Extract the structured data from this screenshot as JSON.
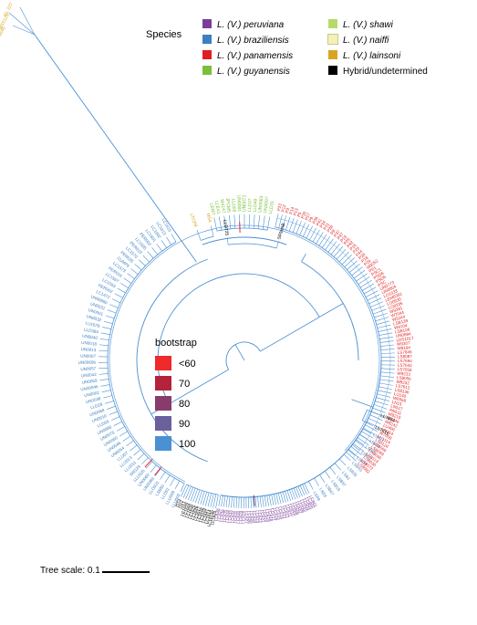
{
  "legend": {
    "title": "Species",
    "items": [
      {
        "genus": "L. (V.) ",
        "species": "peruviana",
        "color": "#7a3f98"
      },
      {
        "genus": "L. (V.) ",
        "species": "braziliensis",
        "color": "#3d7fc1"
      },
      {
        "genus": "L. (V.) ",
        "species": "panamensis",
        "color": "#e02020"
      },
      {
        "genus": "L. (V.) ",
        "species": "guyanensis",
        "color": "#7cbf3a"
      },
      {
        "genus": "L. (V.) ",
        "species": "shawi",
        "color": "#b5d96a"
      },
      {
        "genus": "L. (V.) ",
        "species": "naiffi",
        "color": "#f2f2b6"
      },
      {
        "genus": "L. (V.) ",
        "species": "lainsoni",
        "color": "#d9a520"
      },
      {
        "genus": "",
        "species": "Hybrid/undetermined",
        "color": "#000000",
        "plain": true
      }
    ]
  },
  "bootstrap": {
    "title": "bootstrap",
    "items": [
      {
        "label": "<60",
        "color": "#ee2a2a"
      },
      {
        "label": "70",
        "color": "#b5223c"
      },
      {
        "label": "80",
        "color": "#873c6b"
      },
      {
        "label": "90",
        "color": "#6b5f9c"
      },
      {
        "label": "100",
        "color": "#4a90d2"
      }
    ]
  },
  "scale": {
    "label": "Tree scale: 0.1"
  },
  "colors": {
    "branch": "#4a90d2",
    "peruviana": "#7a3f98",
    "braziliensis": "#3d7fc1",
    "panamensis": "#e02020",
    "guyanensis": "#7cbf3a",
    "lainsoni": "#d9a520",
    "hybrid": "#000000"
  },
  "tips": {
    "lainsoni": [
      "CL 227",
      "MSS123",
      "M9545"
    ],
    "naiffi": [
      "LTCP8",
      "MS4"
    ],
    "guyanensis": [
      "LEM7",
      "LLE41",
      "M4147",
      "JPCM5",
      "LLD09",
      "UN0081",
      "UN0071",
      "LLD37",
      "LLD49",
      "UN0083",
      "UN0097",
      "LLD31"
    ],
    "hybrid_top": [
      "LLD725",
      "SPfamB"
    ],
    "panamensis": [
      "P23",
      "P12",
      "P3",
      "P14",
      "P13",
      "P5",
      "P30",
      "P27",
      "P9",
      "P36",
      "P41",
      "P34",
      "P31",
      "P38",
      "P8",
      "P37",
      "P47",
      "P15",
      "P25",
      "P42",
      "P16",
      "P20",
      "P44",
      "P28",
      "P18",
      "P29",
      "W9252",
      "PS1",
      "PSC1",
      "PSD6",
      "PSD5",
      "PSC",
      "UN0773",
      "UN0004",
      "LO1533",
      "LEM6391",
      "LO0530",
      "LO0235",
      "W9281",
      "W7044",
      "W5244",
      "LSB139",
      "W9104",
      "LSB109",
      "UN0694",
      "LDS1017",
      "W9207",
      "W9194",
      "LS7846",
      "LS8087",
      "LS7694",
      "LS7642",
      "LS7058",
      "W9233",
      "LS8056",
      "W9232",
      "LS7612",
      "LS8136",
      "LU140",
      "W6958",
      "LN15",
      "LN517",
      "AN511",
      "W9215",
      "W7046",
      "W8242",
      "LU406",
      "LAU14",
      "W7058",
      "LU1114",
      "LS8124",
      "LSB066",
      "LSB049",
      "LSB046",
      "LSB113",
      "LSB030",
      "LSB072",
      "LS8092"
    ],
    "hybrid_right": [
      "Lb7864",
      "Lb7616"
    ],
    "braziliensis_left": [
      "LLU003",
      "LLU009",
      "LLD52",
      "LSB50",
      "LLO021",
      "UN0089",
      "UN0060",
      "LLU025",
      "W8129",
      "LLU011",
      "LLU013",
      "LLU0T",
      "UN0054",
      "UN0046",
      "UN0080",
      "UN0078",
      "UN0096",
      "LLD56",
      "UN0010",
      "UN0068",
      "LLD28",
      "UN0038",
      "UN0002",
      "UN0054b",
      "UN0059",
      "UN0042",
      "UN0057",
      "UN0060b",
      "UN0007",
      "UN0013",
      "UN0018",
      "UN0040",
      "LLD384",
      "LU1529",
      "UN0032",
      "UN0001",
      "UN0031",
      "UN0096b",
      "LC1472",
      "PER002",
      "LC1563",
      "LC1567",
      "PER016",
      "LC1573",
      "CUMP5",
      "PER035",
      "LC1570",
      "PER023",
      "LC1595",
      "PER003",
      "LC1601",
      "LC1602",
      "LC1613",
      "LC1615"
    ],
    "braziliensis_right": [
      "LSB21",
      "LSB24",
      "LSB20",
      "LSB37",
      "LSB31",
      "LSB43",
      "LSB35",
      "LSB1",
      "LSB57",
      "LSB19",
      "LSB47",
      "LSB3",
      "LSB9"
    ],
    "hybrid_bottom": [
      "LC1620",
      "LC1615b",
      "LC1614",
      "LC1647",
      "LC1629",
      "LC1618",
      "LC1617",
      "LC1626",
      "LC1625",
      "LC1630",
      "LC1644",
      "LC1646",
      "HY1",
      "HY2",
      "HY3"
    ],
    "peruviana": [
      "LCA01",
      "LCA02",
      "LCA03",
      "LCA04",
      "LCA05",
      "LCA06",
      "LCA07",
      "LCA08",
      "LCA09",
      "LCA10",
      "LCA11",
      "LCA12",
      "LCA13",
      "LCA14",
      "LCA15",
      "LCA16",
      "LCA17",
      "LCA18",
      "LCA19",
      "LCA20",
      "LCA21",
      "LCA22",
      "LCA23",
      "LCA24",
      "LCA25",
      "LCA26",
      "LCA27",
      "LCA28",
      "LCA29",
      "LCA30",
      "LCA31",
      "LCA32",
      "LCA33",
      "LCA34",
      "LCA35",
      "LCA36",
      "LCA37",
      "LCA38"
    ]
  }
}
